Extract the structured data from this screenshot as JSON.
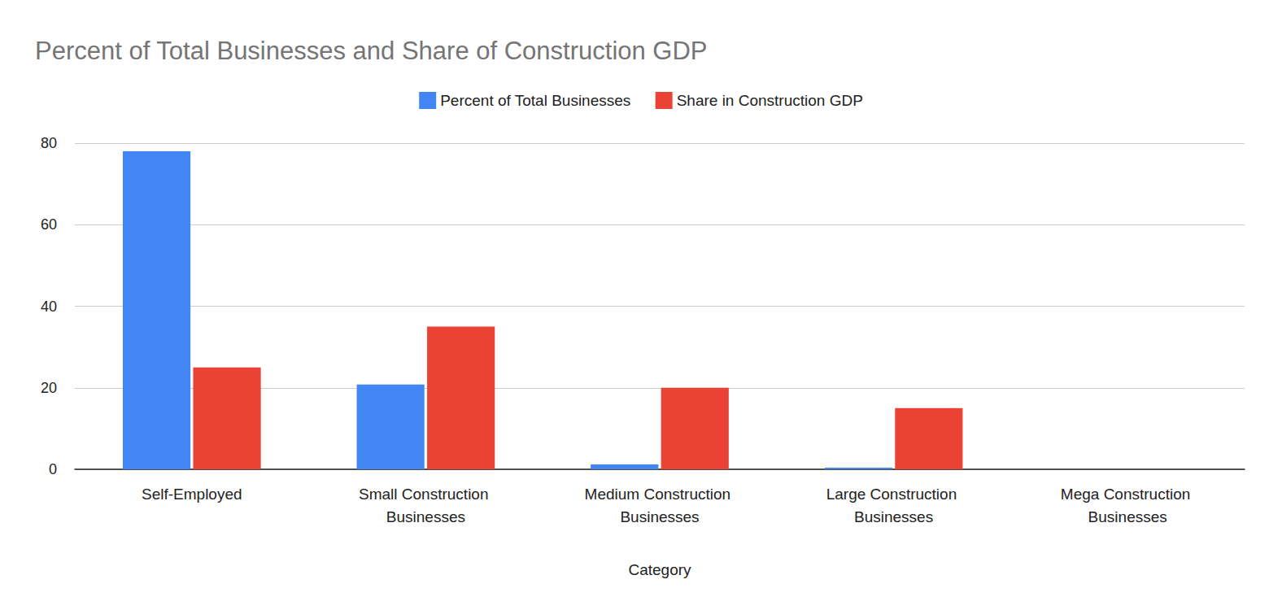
{
  "chart_data": {
    "type": "bar",
    "title": "Percent of Total Businesses and Share of Construction GDP",
    "x_label": "Category",
    "categories": [
      "Self-Employed",
      "Small Construction Businesses",
      "Medium Construction Businesses",
      "Large Construction Businesses",
      "Mega Construction Businesses"
    ],
    "series": [
      {
        "name": "Percent of Total Businesses",
        "color": "#4285f4",
        "values": [
          78,
          20.8,
          1.2,
          0.4,
          0
        ]
      },
      {
        "name": "Share in Construction GDP",
        "color": "#ea4335",
        "values": [
          25,
          35,
          20,
          15,
          0
        ]
      }
    ],
    "ylim": [
      0,
      80
    ],
    "yticks": [
      0,
      20,
      40,
      60,
      80
    ],
    "grid": true,
    "legend": "top"
  }
}
